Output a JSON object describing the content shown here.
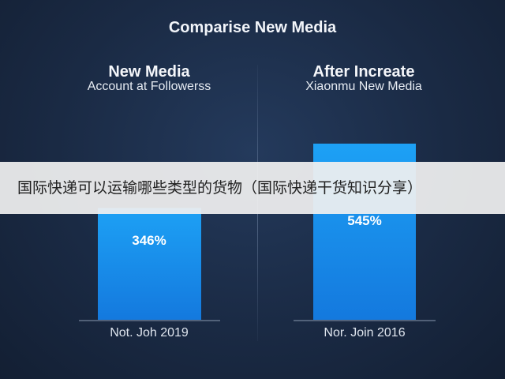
{
  "chart_data": {
    "type": "bar",
    "title": "Comparise New Media",
    "panels": [
      {
        "title": "New Media",
        "subtitle": "Account at Followerss",
        "category": "Not. Joh 2019",
        "value": 346,
        "value_label": "346%"
      },
      {
        "title": "After Increate",
        "subtitle": "Xiaonmu New Media",
        "category": "Nor. Join 2016",
        "value": 545,
        "value_label": "545%"
      }
    ],
    "ylim": [
      0,
      650
    ],
    "grid": false,
    "bar_color": "#1e9cf0"
  },
  "banner": {
    "text": "国际快递可以运输哪些类型的货物（国际快递干货知识分享）"
  }
}
